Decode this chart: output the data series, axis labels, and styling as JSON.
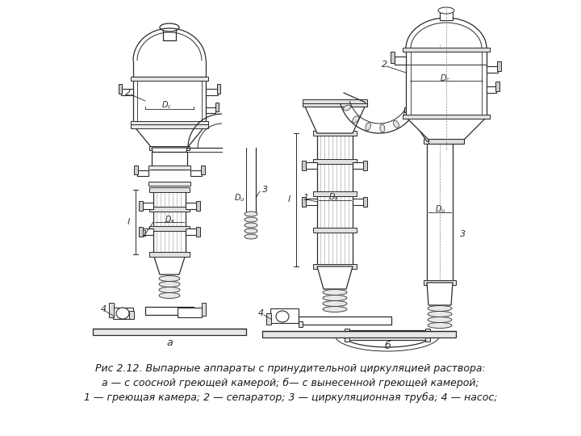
{
  "bg_color": "#ffffff",
  "lc": "#2a2a2a",
  "lw": 0.9,
  "caption_line1": "Рис 2.12. Выпарные аппараты с принудительной циркуляцией раствора:",
  "caption_line2": "а — с соосной греющей камерой; б— с вынесенной греющей камерой;",
  "caption_line3": "1 — греющая камера; 2 — сепаратор; 3 — циркуляционная труба; 4 — насос;",
  "label_a": "а",
  "label_b": "б"
}
